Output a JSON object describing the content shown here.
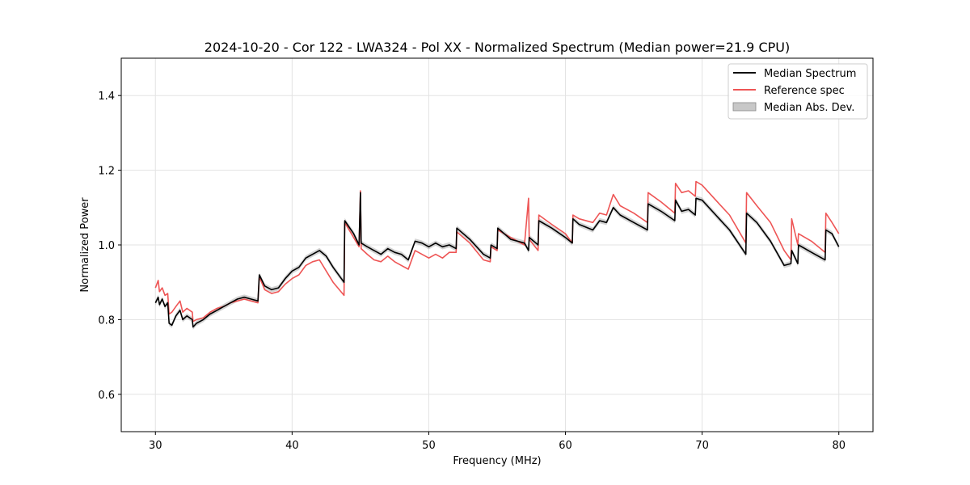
{
  "chart_data": {
    "type": "line",
    "title": "2024-10-20 - Cor 122 - LWA324 - Pol XX - Normalized Spectrum (Median power=21.9 CPU)",
    "xlabel": "Frequency (MHz)",
    "ylabel": "Normalized Power",
    "xlim": [
      27.5,
      82.5
    ],
    "ylim": [
      0.5,
      1.5
    ],
    "xticks": [
      30,
      40,
      50,
      60,
      70,
      80
    ],
    "yticks": [
      0.6,
      0.8,
      1.0,
      1.2,
      1.4
    ],
    "xtick_labels": [
      "30",
      "40",
      "50",
      "60",
      "70",
      "80"
    ],
    "ytick_labels": [
      "0.6",
      "0.8",
      "1.0",
      "1.2",
      "1.4"
    ],
    "grid": true,
    "legend_position": "top-right",
    "legend": [
      "Median Spectrum",
      "Reference spec",
      "Median Abs. Dev."
    ],
    "mad_halfwidth": 0.007,
    "series": [
      {
        "name": "Median Spectrum",
        "color": "#000000",
        "x": [
          30.0,
          30.2,
          30.3,
          30.5,
          30.7,
          30.9,
          31.0,
          31.2,
          31.5,
          31.8,
          32.0,
          32.3,
          32.7,
          32.75,
          33.0,
          33.5,
          34.0,
          34.5,
          35.0,
          35.5,
          36.0,
          36.5,
          37.0,
          37.5,
          37.6,
          38.0,
          38.5,
          39.0,
          39.5,
          40.0,
          40.5,
          41.0,
          41.5,
          42.0,
          42.5,
          43.0,
          43.8,
          43.85,
          44.5,
          44.9,
          45.0,
          45.05,
          45.5,
          46.0,
          46.5,
          47.0,
          47.5,
          48.0,
          48.5,
          49.0,
          49.5,
          50.0,
          50.5,
          51.0,
          51.5,
          52.0,
          52.05,
          53.0,
          54.0,
          54.5,
          54.55,
          55.0,
          55.05,
          56.0,
          57.0,
          57.3,
          57.35,
          58.0,
          58.05,
          59.0,
          60.0,
          60.5,
          60.55,
          61.0,
          62.0,
          62.5,
          63.0,
          63.5,
          64.0,
          65.0,
          66.0,
          66.05,
          67.0,
          68.0,
          68.05,
          68.5,
          69.0,
          69.5,
          69.55,
          70.0,
          71.0,
          72.0,
          73.2,
          73.25,
          74.0,
          75.0,
          76.0,
          76.5,
          76.55,
          77.0,
          77.05,
          78.0,
          79.0,
          79.05,
          79.5,
          80.0
        ],
        "values": [
          0.845,
          0.86,
          0.84,
          0.855,
          0.835,
          0.845,
          0.79,
          0.785,
          0.81,
          0.825,
          0.8,
          0.81,
          0.8,
          0.78,
          0.79,
          0.8,
          0.815,
          0.825,
          0.835,
          0.845,
          0.855,
          0.86,
          0.855,
          0.85,
          0.92,
          0.89,
          0.88,
          0.885,
          0.91,
          0.93,
          0.94,
          0.965,
          0.975,
          0.985,
          0.97,
          0.94,
          0.9,
          1.065,
          1.03,
          1.0,
          1.14,
          1.005,
          0.995,
          0.985,
          0.975,
          0.99,
          0.98,
          0.975,
          0.96,
          1.01,
          1.005,
          0.995,
          1.005,
          0.995,
          1.0,
          0.99,
          1.045,
          1.015,
          0.975,
          0.965,
          1.0,
          0.99,
          1.045,
          1.015,
          1.005,
          0.985,
          1.02,
          1.0,
          1.065,
          1.045,
          1.02,
          1.005,
          1.07,
          1.055,
          1.04,
          1.065,
          1.06,
          1.1,
          1.08,
          1.06,
          1.04,
          1.11,
          1.09,
          1.065,
          1.12,
          1.09,
          1.095,
          1.08,
          1.125,
          1.12,
          1.08,
          1.04,
          0.975,
          1.085,
          1.06,
          1.01,
          0.945,
          0.95,
          0.985,
          0.95,
          1.0,
          0.98,
          0.96,
          1.04,
          1.03,
          0.995
        ]
      },
      {
        "name": "Reference spec",
        "color": "#ee5555",
        "x": [
          30.0,
          30.2,
          30.3,
          30.5,
          30.7,
          30.9,
          31.0,
          31.2,
          31.5,
          31.8,
          32.0,
          32.3,
          32.7,
          32.75,
          33.0,
          33.5,
          34.0,
          34.5,
          35.0,
          35.5,
          36.0,
          36.5,
          37.0,
          37.5,
          37.6,
          38.0,
          38.5,
          39.0,
          39.5,
          40.0,
          40.5,
          41.0,
          41.5,
          42.0,
          42.5,
          43.0,
          43.8,
          43.85,
          44.5,
          44.9,
          45.0,
          45.05,
          45.5,
          46.0,
          46.5,
          47.0,
          47.5,
          48.0,
          48.5,
          49.0,
          49.5,
          50.0,
          50.5,
          51.0,
          51.5,
          52.0,
          52.05,
          53.0,
          54.0,
          54.5,
          54.55,
          55.0,
          55.05,
          56.0,
          57.0,
          57.3,
          57.35,
          58.0,
          58.05,
          59.0,
          60.0,
          60.5,
          60.55,
          61.0,
          62.0,
          62.5,
          63.0,
          63.5,
          64.0,
          65.0,
          66.0,
          66.05,
          67.0,
          68.0,
          68.05,
          68.5,
          69.0,
          69.5,
          69.55,
          70.0,
          71.0,
          72.0,
          73.2,
          73.25,
          74.0,
          75.0,
          76.0,
          76.5,
          76.55,
          77.0,
          77.05,
          78.0,
          79.0,
          79.05,
          79.5,
          80.0
        ],
        "values": [
          0.885,
          0.905,
          0.875,
          0.885,
          0.865,
          0.87,
          0.815,
          0.82,
          0.835,
          0.85,
          0.82,
          0.83,
          0.82,
          0.795,
          0.8,
          0.805,
          0.82,
          0.83,
          0.835,
          0.845,
          0.85,
          0.855,
          0.85,
          0.845,
          0.915,
          0.88,
          0.87,
          0.875,
          0.895,
          0.91,
          0.92,
          0.945,
          0.955,
          0.96,
          0.93,
          0.9,
          0.865,
          1.06,
          1.02,
          0.995,
          1.145,
          0.99,
          0.975,
          0.96,
          0.955,
          0.97,
          0.955,
          0.945,
          0.935,
          0.985,
          0.975,
          0.965,
          0.975,
          0.965,
          0.98,
          0.98,
          1.035,
          1.005,
          0.96,
          0.955,
          0.995,
          0.985,
          1.04,
          1.02,
          1.0,
          1.125,
          1.015,
          0.985,
          1.08,
          1.055,
          1.03,
          1.005,
          1.08,
          1.07,
          1.06,
          1.085,
          1.08,
          1.135,
          1.105,
          1.085,
          1.06,
          1.14,
          1.115,
          1.085,
          1.165,
          1.14,
          1.145,
          1.13,
          1.17,
          1.16,
          1.12,
          1.08,
          1.005,
          1.14,
          1.105,
          1.06,
          0.985,
          0.96,
          1.07,
          1.0,
          1.03,
          1.01,
          0.98,
          1.085,
          1.06,
          1.03
        ]
      }
    ]
  }
}
